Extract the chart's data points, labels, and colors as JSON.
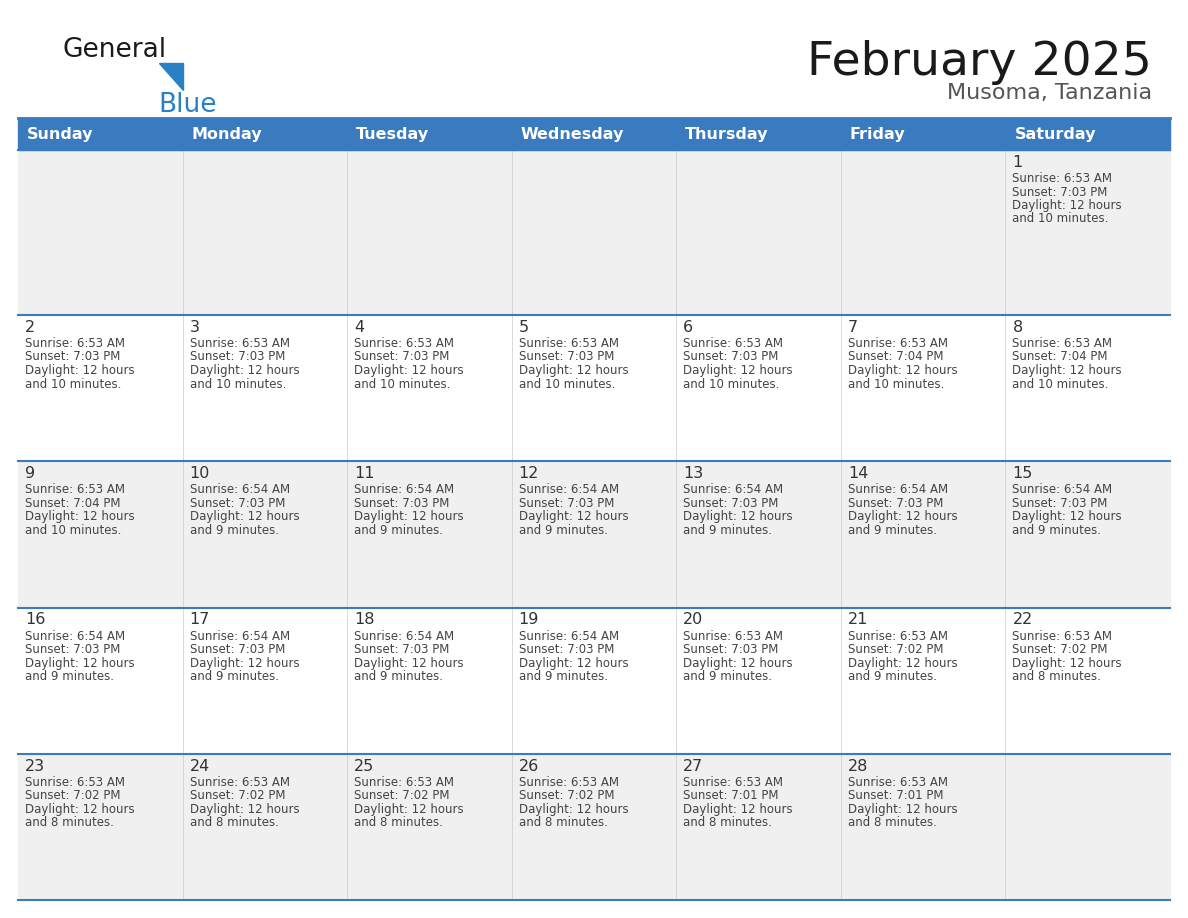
{
  "title": "February 2025",
  "subtitle": "Musoma, Tanzania",
  "days_of_week": [
    "Sunday",
    "Monday",
    "Tuesday",
    "Wednesday",
    "Thursday",
    "Friday",
    "Saturday"
  ],
  "header_bg": "#3a7abf",
  "header_text": "#ffffff",
  "row_bg_odd": "#f0f0f0",
  "row_bg_even": "#ffffff",
  "grid_line_color": "#3a7abf",
  "day_num_color": "#333333",
  "text_color": "#444444",
  "title_color": "#1a1a1a",
  "subtitle_color": "#555555",
  "logo_general_color": "#1a1a1a",
  "logo_blue_color": "#2980c4",
  "calendar_data": [
    [
      null,
      null,
      null,
      null,
      null,
      null,
      {
        "day": 1,
        "sunrise": "6:53 AM",
        "sunset": "7:03 PM",
        "daylight_line3": "Daylight: 12 hours",
        "daylight_line4": "and 10 minutes."
      }
    ],
    [
      {
        "day": 2,
        "sunrise": "6:53 AM",
        "sunset": "7:03 PM",
        "daylight_line3": "Daylight: 12 hours",
        "daylight_line4": "and 10 minutes."
      },
      {
        "day": 3,
        "sunrise": "6:53 AM",
        "sunset": "7:03 PM",
        "daylight_line3": "Daylight: 12 hours",
        "daylight_line4": "and 10 minutes."
      },
      {
        "day": 4,
        "sunrise": "6:53 AM",
        "sunset": "7:03 PM",
        "daylight_line3": "Daylight: 12 hours",
        "daylight_line4": "and 10 minutes."
      },
      {
        "day": 5,
        "sunrise": "6:53 AM",
        "sunset": "7:03 PM",
        "daylight_line3": "Daylight: 12 hours",
        "daylight_line4": "and 10 minutes."
      },
      {
        "day": 6,
        "sunrise": "6:53 AM",
        "sunset": "7:03 PM",
        "daylight_line3": "Daylight: 12 hours",
        "daylight_line4": "and 10 minutes."
      },
      {
        "day": 7,
        "sunrise": "6:53 AM",
        "sunset": "7:04 PM",
        "daylight_line3": "Daylight: 12 hours",
        "daylight_line4": "and 10 minutes."
      },
      {
        "day": 8,
        "sunrise": "6:53 AM",
        "sunset": "7:04 PM",
        "daylight_line3": "Daylight: 12 hours",
        "daylight_line4": "and 10 minutes."
      }
    ],
    [
      {
        "day": 9,
        "sunrise": "6:53 AM",
        "sunset": "7:04 PM",
        "daylight_line3": "Daylight: 12 hours",
        "daylight_line4": "and 10 minutes."
      },
      {
        "day": 10,
        "sunrise": "6:54 AM",
        "sunset": "7:03 PM",
        "daylight_line3": "Daylight: 12 hours",
        "daylight_line4": "and 9 minutes."
      },
      {
        "day": 11,
        "sunrise": "6:54 AM",
        "sunset": "7:03 PM",
        "daylight_line3": "Daylight: 12 hours",
        "daylight_line4": "and 9 minutes."
      },
      {
        "day": 12,
        "sunrise": "6:54 AM",
        "sunset": "7:03 PM",
        "daylight_line3": "Daylight: 12 hours",
        "daylight_line4": "and 9 minutes."
      },
      {
        "day": 13,
        "sunrise": "6:54 AM",
        "sunset": "7:03 PM",
        "daylight_line3": "Daylight: 12 hours",
        "daylight_line4": "and 9 minutes."
      },
      {
        "day": 14,
        "sunrise": "6:54 AM",
        "sunset": "7:03 PM",
        "daylight_line3": "Daylight: 12 hours",
        "daylight_line4": "and 9 minutes."
      },
      {
        "day": 15,
        "sunrise": "6:54 AM",
        "sunset": "7:03 PM",
        "daylight_line3": "Daylight: 12 hours",
        "daylight_line4": "and 9 minutes."
      }
    ],
    [
      {
        "day": 16,
        "sunrise": "6:54 AM",
        "sunset": "7:03 PM",
        "daylight_line3": "Daylight: 12 hours",
        "daylight_line4": "and 9 minutes."
      },
      {
        "day": 17,
        "sunrise": "6:54 AM",
        "sunset": "7:03 PM",
        "daylight_line3": "Daylight: 12 hours",
        "daylight_line4": "and 9 minutes."
      },
      {
        "day": 18,
        "sunrise": "6:54 AM",
        "sunset": "7:03 PM",
        "daylight_line3": "Daylight: 12 hours",
        "daylight_line4": "and 9 minutes."
      },
      {
        "day": 19,
        "sunrise": "6:54 AM",
        "sunset": "7:03 PM",
        "daylight_line3": "Daylight: 12 hours",
        "daylight_line4": "and 9 minutes."
      },
      {
        "day": 20,
        "sunrise": "6:53 AM",
        "sunset": "7:03 PM",
        "daylight_line3": "Daylight: 12 hours",
        "daylight_line4": "and 9 minutes."
      },
      {
        "day": 21,
        "sunrise": "6:53 AM",
        "sunset": "7:02 PM",
        "daylight_line3": "Daylight: 12 hours",
        "daylight_line4": "and 9 minutes."
      },
      {
        "day": 22,
        "sunrise": "6:53 AM",
        "sunset": "7:02 PM",
        "daylight_line3": "Daylight: 12 hours",
        "daylight_line4": "and 8 minutes."
      }
    ],
    [
      {
        "day": 23,
        "sunrise": "6:53 AM",
        "sunset": "7:02 PM",
        "daylight_line3": "Daylight: 12 hours",
        "daylight_line4": "and 8 minutes."
      },
      {
        "day": 24,
        "sunrise": "6:53 AM",
        "sunset": "7:02 PM",
        "daylight_line3": "Daylight: 12 hours",
        "daylight_line4": "and 8 minutes."
      },
      {
        "day": 25,
        "sunrise": "6:53 AM",
        "sunset": "7:02 PM",
        "daylight_line3": "Daylight: 12 hours",
        "daylight_line4": "and 8 minutes."
      },
      {
        "day": 26,
        "sunrise": "6:53 AM",
        "sunset": "7:02 PM",
        "daylight_line3": "Daylight: 12 hours",
        "daylight_line4": "and 8 minutes."
      },
      {
        "day": 27,
        "sunrise": "6:53 AM",
        "sunset": "7:01 PM",
        "daylight_line3": "Daylight: 12 hours",
        "daylight_line4": "and 8 minutes."
      },
      {
        "day": 28,
        "sunrise": "6:53 AM",
        "sunset": "7:01 PM",
        "daylight_line3": "Daylight: 12 hours",
        "daylight_line4": "and 8 minutes."
      },
      null
    ]
  ]
}
